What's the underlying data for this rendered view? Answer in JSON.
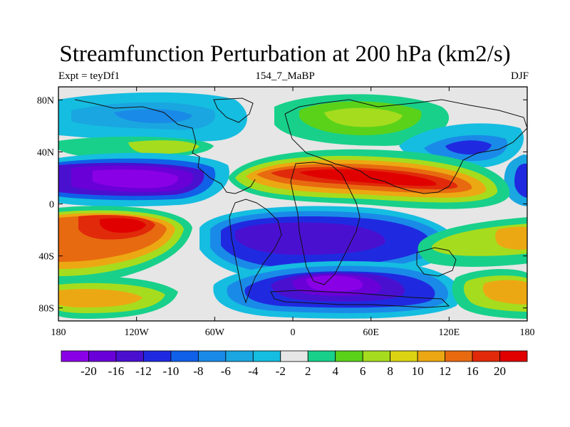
{
  "figure": {
    "title": "Streamfunction Perturbation at 200 hPa (km2/s)",
    "left_string": "Expt = teyDf1",
    "center_string": "154_7_MaBP",
    "right_string": "DJF"
  },
  "axes": {
    "lon_range": [
      -180,
      180
    ],
    "lat_range": [
      -90,
      90
    ],
    "lon_ticks": [
      {
        "value": -180,
        "label": "180"
      },
      {
        "value": -120,
        "label": "120W"
      },
      {
        "value": -60,
        "label": "60W"
      },
      {
        "value": 0,
        "label": "0"
      },
      {
        "value": 60,
        "label": "60E"
      },
      {
        "value": 120,
        "label": "120E"
      },
      {
        "value": 180,
        "label": "180"
      }
    ],
    "lat_ticks": [
      {
        "value": 80,
        "label": "80N"
      },
      {
        "value": 40,
        "label": "40N"
      },
      {
        "value": 0,
        "label": "0"
      },
      {
        "value": -40,
        "label": "40S"
      },
      {
        "value": -80,
        "label": "80S"
      }
    ]
  },
  "colorbar": {
    "levels": [
      "-20",
      "-16",
      "-12",
      "-10",
      "-8",
      "-6",
      "-4",
      "-2",
      "2",
      "4",
      "6",
      "8",
      "10",
      "12",
      "16",
      "20"
    ],
    "colors": [
      "#8a00e6",
      "#6a00d8",
      "#4a10d0",
      "#1f2ae0",
      "#1060e8",
      "#1a8ae8",
      "#1aa6e0",
      "#15bde0",
      "#e6e6e6",
      "#18d08a",
      "#5ad21a",
      "#a6dc1e",
      "#dcd412",
      "#eca812",
      "#e86a10",
      "#e02a0a",
      "#e00000"
    ]
  },
  "map_data": {
    "variable": "Streamfunction Perturbation at 200 hPa",
    "units": "km2/s",
    "features": [
      {
        "name": "negative-center-north-pacific-subtropics",
        "lon": -135,
        "lat": 22,
        "value": -20
      },
      {
        "name": "negative-center-south-america-atlantic",
        "lon": -25,
        "lat": -25,
        "value": -16
      },
      {
        "name": "negative-center-southern-africa-indian",
        "lon": 40,
        "lat": -50,
        "value": -20
      },
      {
        "name": "negative-center-north-pacific-high-lat",
        "lon": 150,
        "lat": 42,
        "value": -10
      },
      {
        "name": "positive-center-north-africa-asia",
        "lon": 40,
        "lat": 22,
        "value": 20
      },
      {
        "name": "positive-center-south-pacific",
        "lon": -125,
        "lat": -16,
        "value": 20
      },
      {
        "name": "positive-center-east-asia-high-lat",
        "lon": 30,
        "lat": 70,
        "value": 6
      }
    ]
  }
}
